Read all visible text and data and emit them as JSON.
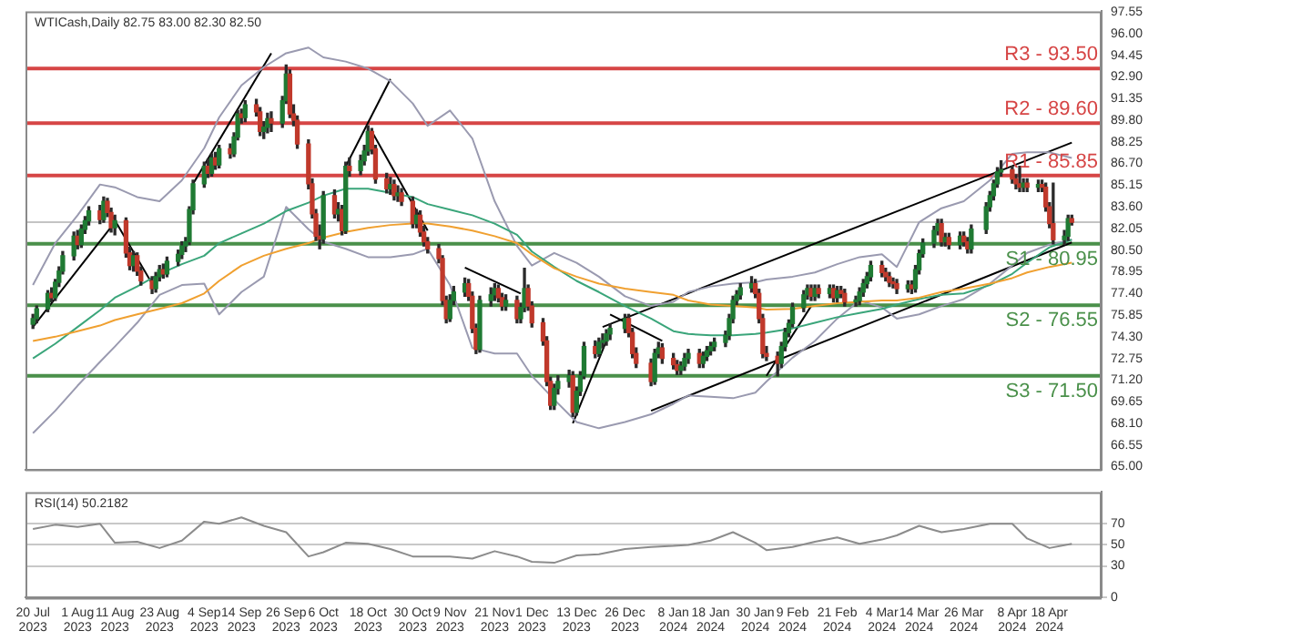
{
  "chart_data": [
    {
      "type": "candlestick",
      "title": "WTICash,Daily 82.75 83.00 82.30 82.50",
      "x": [
        "2023-07-20",
        "2023-07-21",
        "2023-07-24",
        "2023-07-25",
        "2023-07-26",
        "2023-07-27",
        "2023-07-28",
        "2023-07-31",
        "2023-08-01",
        "2023-08-02",
        "2023-08-03",
        "2023-08-04",
        "2023-08-07",
        "2023-08-08",
        "2023-08-09",
        "2023-08-10",
        "2023-08-11",
        "2023-08-14",
        "2023-08-15",
        "2023-08-16",
        "2023-08-17",
        "2023-08-18",
        "2023-08-21",
        "2023-08-22",
        "2023-08-23",
        "2023-08-24",
        "2023-08-25",
        "2023-08-28",
        "2023-08-29",
        "2023-08-30",
        "2023-08-31",
        "2023-09-01",
        "2023-09-04",
        "2023-09-05",
        "2023-09-06",
        "2023-09-07",
        "2023-09-08",
        "2023-09-11",
        "2023-09-12",
        "2023-09-13",
        "2023-09-14",
        "2023-09-15",
        "2023-09-18",
        "2023-09-19",
        "2023-09-20",
        "2023-09-21",
        "2023-09-22",
        "2023-09-25",
        "2023-09-26",
        "2023-09-27",
        "2023-09-28",
        "2023-09-29",
        "2023-10-02",
        "2023-10-03",
        "2023-10-04",
        "2023-10-05",
        "2023-10-06",
        "2023-10-09",
        "2023-10-10",
        "2023-10-11",
        "2023-10-12",
        "2023-10-13",
        "2023-10-16",
        "2023-10-17",
        "2023-10-18",
        "2023-10-19",
        "2023-10-20",
        "2023-10-23",
        "2023-10-24",
        "2023-10-25",
        "2023-10-26",
        "2023-10-27",
        "2023-10-30",
        "2023-10-31",
        "2023-11-01",
        "2023-11-02",
        "2023-11-03",
        "2023-11-06",
        "2023-11-07",
        "2023-11-08",
        "2023-11-09",
        "2023-11-10",
        "2023-11-13",
        "2023-11-14",
        "2023-11-15",
        "2023-11-16",
        "2023-11-17",
        "2023-11-20",
        "2023-11-21",
        "2023-11-22",
        "2023-11-23",
        "2023-11-24",
        "2023-11-27",
        "2023-11-28",
        "2023-11-29",
        "2023-11-30",
        "2023-12-01",
        "2023-12-04",
        "2023-12-05",
        "2023-12-06",
        "2023-12-07",
        "2023-12-08",
        "2023-12-11",
        "2023-12-12",
        "2023-12-13",
        "2023-12-14",
        "2023-12-15",
        "2023-12-18",
        "2023-12-19",
        "2023-12-20",
        "2023-12-21",
        "2023-12-22",
        "2023-12-26",
        "2023-12-27",
        "2023-12-28",
        "2023-12-29",
        "2024-01-02",
        "2024-01-03",
        "2024-01-04",
        "2024-01-05",
        "2024-01-08",
        "2024-01-09",
        "2024-01-10",
        "2024-01-11",
        "2024-01-12",
        "2024-01-15",
        "2024-01-16",
        "2024-01-17",
        "2024-01-18",
        "2024-01-19",
        "2024-01-22",
        "2024-01-23",
        "2024-01-24",
        "2024-01-25",
        "2024-01-26",
        "2024-01-29",
        "2024-01-30",
        "2024-01-31",
        "2024-02-01",
        "2024-02-02",
        "2024-02-05",
        "2024-02-06",
        "2024-02-07",
        "2024-02-08",
        "2024-02-09",
        "2024-02-12",
        "2024-02-13",
        "2024-02-14",
        "2024-02-15",
        "2024-02-16",
        "2024-02-19",
        "2024-02-20",
        "2024-02-21",
        "2024-02-22",
        "2024-02-23",
        "2024-02-26",
        "2024-02-27",
        "2024-02-28",
        "2024-02-29",
        "2024-03-01",
        "2024-03-04",
        "2024-03-05",
        "2024-03-06",
        "2024-03-07",
        "2024-03-08",
        "2024-03-11",
        "2024-03-12",
        "2024-03-13",
        "2024-03-14",
        "2024-03-15",
        "2024-03-18",
        "2024-03-19",
        "2024-03-20",
        "2024-03-21",
        "2024-03-22",
        "2024-03-25",
        "2024-03-26",
        "2024-03-27",
        "2024-03-28",
        "2024-04-01",
        "2024-04-02",
        "2024-04-03",
        "2024-04-04",
        "2024-04-05",
        "2024-04-08",
        "2024-04-09",
        "2024-04-10",
        "2024-04-11",
        "2024-04-12",
        "2024-04-15",
        "2024-04-16",
        "2024-04-17",
        "2024-04-18",
        "2024-04-19",
        "2024-04-22",
        "2024-04-23",
        "2024-04-24"
      ],
      "ohlc": [
        [
          75.2,
          75.9,
          74.9,
          75.6
        ],
        [
          75.6,
          76.5,
          75.3,
          76.3
        ],
        [
          76.3,
          77.6,
          76.1,
          77.4
        ],
        [
          77.4,
          77.8,
          76.8,
          77.1
        ],
        [
          77.1,
          78.4,
          76.9,
          78.2
        ],
        [
          78.2,
          79.3,
          77.9,
          79.0
        ],
        [
          79.0,
          80.4,
          78.8,
          80.1
        ],
        [
          80.1,
          81.8,
          79.8,
          81.5
        ],
        [
          81.5,
          81.9,
          80.6,
          80.9
        ],
        [
          80.9,
          82.3,
          80.7,
          82.0
        ],
        [
          82.0,
          82.9,
          81.7,
          82.6
        ],
        [
          82.6,
          83.6,
          82.3,
          83.3
        ],
        [
          83.3,
          83.7,
          82.4,
          82.7
        ],
        [
          82.7,
          84.3,
          82.5,
          84.0
        ],
        [
          84.0,
          84.2,
          82.9,
          83.2
        ],
        [
          83.2,
          83.5,
          81.8,
          82.1
        ],
        [
          82.1,
          83.0,
          81.6,
          82.6
        ],
        [
          82.6,
          82.8,
          80.0,
          80.3
        ],
        [
          80.3,
          80.7,
          79.1,
          79.4
        ],
        [
          79.4,
          80.4,
          79.0,
          80.1
        ],
        [
          80.1,
          80.3,
          78.7,
          79.0
        ],
        [
          79.0,
          79.3,
          78.0,
          78.3
        ],
        [
          78.3,
          78.6,
          77.4,
          77.75
        ],
        [
          77.75,
          78.9,
          77.5,
          78.6
        ],
        [
          78.6,
          79.4,
          78.3,
          79.1
        ],
        [
          79.1,
          79.5,
          78.5,
          78.8
        ],
        [
          78.8,
          80.0,
          78.6,
          79.7
        ],
        [
          79.7,
          80.5,
          79.4,
          80.2
        ],
        [
          80.2,
          81.1,
          79.9,
          80.8
        ],
        [
          80.8,
          81.4,
          80.4,
          81.1
        ],
        [
          81.1,
          83.6,
          80.9,
          83.4
        ],
        [
          83.4,
          85.5,
          83.1,
          85.25
        ],
        [
          85.25,
          86.8,
          85.0,
          86.5
        ],
        [
          86.5,
          87.0,
          85.7,
          86.0
        ],
        [
          86.0,
          87.4,
          85.8,
          87.1
        ],
        [
          87.1,
          87.5,
          86.3,
          86.6
        ],
        [
          86.6,
          88.0,
          86.4,
          87.75
        ],
        [
          87.75,
          88.1,
          87.1,
          87.4
        ],
        [
          87.4,
          88.9,
          87.2,
          88.6
        ],
        [
          88.6,
          90.5,
          88.4,
          90.25
        ],
        [
          90.25,
          90.6,
          89.6,
          90.0
        ],
        [
          90.0,
          91.2,
          89.7,
          90.9
        ],
        [
          90.9,
          91.3,
          90.1,
          90.4
        ],
        [
          90.4,
          90.7,
          88.7,
          89.0
        ],
        [
          89.0,
          89.7,
          88.5,
          89.3
        ],
        [
          89.3,
          90.3,
          88.9,
          89.9
        ],
        [
          89.9,
          90.4,
          89.0,
          89.6
        ],
        [
          89.6,
          91.5,
          89.3,
          91.2
        ],
        [
          91.2,
          93.75,
          91.0,
          93.1
        ],
        [
          93.1,
          93.4,
          90.0,
          90.25
        ],
        [
          90.25,
          90.9,
          89.4,
          89.8
        ],
        [
          89.8,
          90.1,
          87.8,
          88.1
        ],
        [
          88.1,
          88.4,
          84.9,
          85.25
        ],
        [
          85.25,
          85.6,
          82.8,
          83.1
        ],
        [
          83.1,
          83.4,
          81.2,
          81.5
        ],
        [
          81.5,
          82.3,
          80.6,
          81.3
        ],
        [
          81.3,
          84.7,
          81.0,
          84.4
        ],
        [
          84.4,
          84.8,
          82.8,
          83.1
        ],
        [
          83.1,
          83.9,
          82.6,
          83.4
        ],
        [
          83.4,
          83.7,
          81.6,
          81.9
        ],
        [
          81.9,
          86.8,
          81.7,
          86.5
        ],
        [
          86.5,
          87.1,
          85.8,
          86.2
        ],
        [
          86.2,
          87.3,
          85.9,
          86.9
        ],
        [
          86.9,
          88.0,
          86.6,
          87.6
        ],
        [
          87.6,
          89.4,
          87.3,
          89.0
        ],
        [
          89.0,
          89.2,
          87.4,
          87.75
        ],
        [
          87.75,
          88.0,
          85.3,
          85.6
        ],
        [
          85.6,
          86.0,
          84.6,
          84.9
        ],
        [
          84.9,
          85.7,
          84.5,
          85.2
        ],
        [
          85.2,
          85.5,
          84.1,
          84.4
        ],
        [
          84.4,
          85.1,
          84.0,
          84.6
        ],
        [
          84.6,
          84.9,
          83.7,
          84.0
        ],
        [
          84.0,
          84.3,
          82.1,
          82.4
        ],
        [
          82.4,
          83.4,
          82.1,
          83.0
        ],
        [
          83.0,
          83.3,
          81.5,
          81.8
        ],
        [
          81.8,
          82.2,
          80.8,
          81.1
        ],
        [
          81.1,
          81.4,
          80.3,
          80.6
        ],
        [
          80.6,
          80.9,
          79.6,
          79.9
        ],
        [
          79.9,
          80.1,
          76.6,
          76.9
        ],
        [
          76.9,
          77.2,
          75.3,
          75.6
        ],
        [
          75.6,
          77.3,
          75.4,
          76.9
        ],
        [
          76.9,
          77.9,
          76.6,
          77.5
        ],
        [
          77.5,
          78.5,
          77.2,
          78.1
        ],
        [
          78.1,
          78.4,
          76.9,
          77.2
        ],
        [
          77.2,
          77.5,
          74.6,
          74.9
        ],
        [
          74.9,
          75.2,
          73.1,
          73.4
        ],
        [
          73.4,
          77.2,
          73.2,
          76.9
        ],
        [
          76.9,
          77.8,
          76.5,
          77.3
        ],
        [
          77.3,
          78.1,
          76.9,
          77.75
        ],
        [
          77.75,
          78.0,
          76.8,
          77.1
        ],
        [
          77.1,
          77.4,
          76.2,
          76.5
        ],
        [
          76.5,
          77.3,
          76.2,
          76.9
        ],
        [
          76.9,
          77.2,
          75.3,
          75.6
        ],
        [
          75.6,
          76.7,
          75.3,
          76.4
        ],
        [
          76.4,
          79.2,
          76.1,
          77.75
        ],
        [
          77.75,
          78.0,
          76.2,
          76.5
        ],
        [
          76.5,
          76.8,
          75.0,
          75.3
        ],
        [
          75.3,
          75.6,
          73.7,
          74.0
        ],
        [
          74.0,
          74.3,
          70.8,
          71.1
        ],
        [
          71.1,
          71.4,
          69.1,
          69.4
        ],
        [
          69.4,
          70.9,
          69.1,
          70.6
        ],
        [
          70.6,
          71.5,
          70.2,
          71.1
        ],
        [
          71.1,
          71.9,
          70.7,
          71.5
        ],
        [
          71.5,
          71.8,
          68.6,
          68.9
        ],
        [
          68.9,
          70.7,
          68.7,
          70.4
        ],
        [
          70.4,
          71.8,
          70.1,
          71.5
        ],
        [
          71.5,
          73.9,
          71.3,
          73.6
        ],
        [
          73.6,
          74.0,
          72.8,
          73.1
        ],
        [
          73.1,
          74.2,
          72.9,
          73.9
        ],
        [
          73.9,
          74.5,
          73.5,
          74.0
        ],
        [
          74.0,
          74.8,
          73.7,
          74.5
        ],
        [
          74.5,
          75.2,
          74.1,
          74.9
        ],
        [
          74.9,
          75.9,
          74.6,
          75.6
        ],
        [
          75.6,
          75.9,
          74.3,
          74.6
        ],
        [
          74.6,
          74.9,
          72.8,
          73.1
        ],
        [
          73.1,
          73.5,
          72.1,
          72.4
        ],
        [
          72.4,
          72.7,
          70.8,
          71.1
        ],
        [
          71.1,
          73.4,
          70.9,
          73.1
        ],
        [
          73.1,
          73.9,
          72.8,
          73.5
        ],
        [
          73.5,
          73.8,
          72.4,
          72.75
        ],
        [
          72.75,
          73.1,
          72.0,
          72.3
        ],
        [
          72.3,
          72.6,
          71.6,
          71.9
        ],
        [
          71.9,
          72.5,
          71.6,
          72.2
        ],
        [
          72.2,
          73.1,
          71.9,
          72.75
        ],
        [
          72.75,
          73.4,
          72.4,
          73.1
        ],
        [
          73.1,
          73.4,
          72.1,
          72.4
        ],
        [
          72.4,
          73.2,
          72.1,
          72.9
        ],
        [
          72.9,
          73.6,
          72.6,
          73.3
        ],
        [
          73.3,
          73.9,
          73.0,
          73.6
        ],
        [
          73.6,
          74.2,
          73.3,
          73.9
        ],
        [
          73.9,
          74.7,
          73.6,
          74.4
        ],
        [
          74.4,
          75.9,
          74.1,
          75.6
        ],
        [
          75.6,
          77.2,
          75.3,
          76.9
        ],
        [
          76.9,
          77.6,
          76.6,
          77.3
        ],
        [
          77.3,
          78.1,
          77.0,
          77.8
        ],
        [
          77.8,
          78.6,
          77.5,
          78.1
        ],
        [
          78.1,
          78.4,
          77.1,
          77.4
        ],
        [
          77.4,
          77.7,
          75.3,
          75.6
        ],
        [
          75.6,
          75.9,
          72.8,
          73.1
        ],
        [
          73.1,
          73.6,
          72.6,
          72.9
        ],
        [
          72.9,
          73.2,
          71.5,
          72.4
        ],
        [
          72.4,
          73.9,
          72.1,
          73.6
        ],
        [
          73.6,
          74.9,
          73.3,
          74.6
        ],
        [
          74.6,
          75.5,
          74.3,
          75.25
        ],
        [
          75.25,
          76.7,
          75.0,
          76.4
        ],
        [
          76.4,
          77.6,
          76.1,
          77.3
        ],
        [
          77.3,
          78.0,
          77.0,
          77.75
        ],
        [
          77.75,
          78.0,
          76.9,
          77.2
        ],
        [
          77.2,
          78.0,
          76.9,
          77.75
        ],
        [
          77.75,
          78.0,
          77.1,
          77.4
        ],
        [
          77.4,
          78.0,
          77.1,
          77.75
        ],
        [
          77.75,
          78.0,
          76.8,
          77.1
        ],
        [
          77.1,
          77.9,
          76.8,
          77.6
        ],
        [
          77.6,
          77.9,
          77.1,
          77.4
        ],
        [
          77.4,
          77.7,
          76.5,
          76.8
        ],
        [
          76.8,
          77.2,
          76.5,
          76.9
        ],
        [
          76.9,
          77.8,
          76.6,
          77.5
        ],
        [
          77.5,
          78.4,
          77.2,
          78.1
        ],
        [
          78.1,
          78.9,
          77.8,
          78.6
        ],
        [
          78.6,
          79.7,
          78.3,
          79.4
        ],
        [
          79.4,
          79.7,
          78.6,
          78.9
        ],
        [
          78.9,
          79.2,
          78.3,
          78.6
        ],
        [
          78.6,
          78.9,
          77.9,
          78.2
        ],
        [
          78.2,
          78.5,
          77.8,
          78.1
        ],
        [
          78.1,
          78.4,
          77.4,
          77.75
        ],
        [
          77.75,
          78.3,
          77.5,
          78.0
        ],
        [
          78.0,
          78.3,
          77.4,
          77.75
        ],
        [
          77.75,
          79.4,
          77.5,
          79.1
        ],
        [
          79.1,
          80.5,
          78.8,
          80.25
        ],
        [
          80.25,
          81.3,
          80.0,
          81.0
        ],
        [
          81.0,
          82.2,
          80.7,
          81.9
        ],
        [
          81.9,
          82.7,
          81.6,
          82.4
        ],
        [
          82.4,
          82.7,
          80.8,
          81.1
        ],
        [
          81.1,
          81.7,
          80.8,
          81.4
        ],
        [
          81.4,
          81.7,
          80.6,
          80.9
        ],
        [
          80.9,
          81.8,
          80.6,
          81.5
        ],
        [
          81.5,
          81.8,
          80.8,
          81.1
        ],
        [
          81.1,
          81.4,
          80.3,
          80.6
        ],
        [
          80.6,
          82.3,
          80.3,
          82.0
        ],
        [
          82.0,
          83.9,
          81.7,
          83.6
        ],
        [
          83.6,
          84.7,
          83.3,
          84.4
        ],
        [
          84.4,
          85.5,
          84.1,
          85.25
        ],
        [
          85.25,
          86.4,
          85.0,
          86.1
        ],
        [
          86.1,
          86.9,
          85.8,
          86.25
        ],
        [
          86.25,
          86.5,
          85.3,
          85.6
        ],
        [
          85.6,
          85.9,
          84.9,
          85.25
        ],
        [
          85.25,
          86.5,
          84.7,
          85.0
        ],
        [
          85.0,
          85.6,
          84.7,
          85.3
        ],
        [
          85.3,
          85.6,
          84.7,
          85.0
        ],
        [
          85.0,
          85.5,
          84.7,
          85.2
        ],
        [
          85.2,
          85.5,
          84.7,
          85.0
        ],
        [
          85.0,
          85.3,
          83.3,
          83.6
        ],
        [
          83.6,
          83.9,
          82.1,
          82.4
        ],
        [
          82.4,
          85.3,
          80.95,
          81.25
        ],
        [
          81.25,
          81.9,
          80.9,
          81.5
        ],
        [
          81.5,
          83.0,
          81.2,
          82.75
        ],
        [
          82.75,
          83.0,
          82.3,
          82.5
        ]
      ],
      "series": [
        {
          "type": "line",
          "color": "#f0a030",
          "x": [
            "2023-07-20",
            "2023-07-26",
            "2023-08-01",
            "2023-08-07",
            "2023-08-11",
            "2023-08-17",
            "2023-08-23",
            "2023-08-29",
            "2023-09-04",
            "2023-09-08",
            "2023-09-14",
            "2023-09-20",
            "2023-09-26",
            "2023-10-02",
            "2023-10-06",
            "2023-10-12",
            "2023-10-18",
            "2023-10-24",
            "2023-10-30",
            "2023-11-03",
            "2023-11-09",
            "2023-11-15",
            "2023-11-21",
            "2023-11-27",
            "2023-12-01",
            "2023-12-07",
            "2023-12-13",
            "2023-12-19",
            "2023-12-26",
            "2024-01-02",
            "2024-01-08",
            "2024-01-12",
            "2024-01-18",
            "2024-01-24",
            "2024-01-30",
            "2024-02-02",
            "2024-02-09",
            "2024-02-15",
            "2024-02-21",
            "2024-02-27",
            "2024-03-04",
            "2024-03-08",
            "2024-03-14",
            "2024-03-20",
            "2024-03-26",
            "2024-04-02",
            "2024-04-08",
            "2024-04-12",
            "2024-04-18",
            "2024-04-24"
          ],
          "values": [
            74.0,
            74.3,
            74.7,
            75.1,
            75.5,
            75.9,
            76.3,
            76.7,
            77.4,
            78.3,
            79.4,
            80.1,
            80.6,
            81.0,
            81.4,
            81.8,
            82.1,
            82.3,
            82.4,
            82.4,
            82.2,
            81.9,
            81.5,
            81.0,
            80.2,
            79.2,
            78.6,
            78.1,
            77.75,
            77.5,
            77.3,
            76.9,
            76.6,
            76.5,
            76.4,
            76.25,
            76.3,
            76.5,
            76.7,
            76.8,
            76.9,
            76.9,
            77.1,
            77.5,
            77.75,
            78.1,
            78.5,
            78.9,
            79.3,
            79.6
          ]
        },
        {
          "type": "line",
          "color": "#3aa57a",
          "x": [
            "2023-07-20",
            "2023-07-26",
            "2023-08-01",
            "2023-08-07",
            "2023-08-11",
            "2023-08-17",
            "2023-08-23",
            "2023-08-29",
            "2023-09-04",
            "2023-09-08",
            "2023-09-14",
            "2023-09-20",
            "2023-09-26",
            "2023-10-02",
            "2023-10-06",
            "2023-10-12",
            "2023-10-18",
            "2023-10-24",
            "2023-10-30",
            "2023-11-03",
            "2023-11-09",
            "2023-11-15",
            "2023-11-21",
            "2023-11-27",
            "2023-12-01",
            "2023-12-07",
            "2023-12-13",
            "2023-12-19",
            "2023-12-26",
            "2024-01-02",
            "2024-01-08",
            "2024-01-12",
            "2024-01-18",
            "2024-01-24",
            "2024-01-30",
            "2024-02-02",
            "2024-02-09",
            "2024-02-15",
            "2024-02-21",
            "2024-02-27",
            "2024-03-04",
            "2024-03-08",
            "2024-03-14",
            "2024-03-20",
            "2024-03-26",
            "2024-04-02",
            "2024-04-08",
            "2024-04-12",
            "2024-04-18",
            "2024-04-24"
          ],
          "values": [
            72.75,
            73.8,
            75.0,
            76.2,
            77.1,
            77.9,
            78.8,
            79.5,
            80.1,
            81.0,
            81.7,
            82.4,
            83.3,
            83.9,
            84.4,
            84.9,
            84.9,
            84.6,
            84.3,
            83.8,
            83.4,
            83.0,
            82.4,
            81.6,
            80.4,
            79.3,
            78.3,
            77.5,
            76.5,
            75.6,
            74.7,
            74.5,
            74.4,
            74.4,
            74.5,
            74.6,
            74.9,
            75.3,
            75.7,
            76.0,
            76.3,
            76.6,
            77.0,
            77.3,
            77.4,
            78.0,
            78.8,
            79.6,
            80.7,
            81.25
          ]
        },
        {
          "type": "line",
          "color": "#9a9ab0",
          "x": [
            "2023-07-20",
            "2023-07-26",
            "2023-08-01",
            "2023-08-07",
            "2023-08-11",
            "2023-08-17",
            "2023-08-23",
            "2023-08-29",
            "2023-09-04",
            "2023-09-08",
            "2023-09-14",
            "2023-09-20",
            "2023-09-26",
            "2023-10-02",
            "2023-10-06",
            "2023-10-12",
            "2023-10-18",
            "2023-10-24",
            "2023-10-30",
            "2023-11-03",
            "2023-11-09",
            "2023-11-15",
            "2023-11-21",
            "2023-11-27",
            "2023-12-01",
            "2023-12-07",
            "2023-12-13",
            "2023-12-19",
            "2023-12-26",
            "2024-01-02",
            "2024-01-08",
            "2024-01-12",
            "2024-01-18",
            "2024-01-24",
            "2024-01-30",
            "2024-02-02",
            "2024-02-09",
            "2024-02-15",
            "2024-02-21",
            "2024-02-27",
            "2024-03-04",
            "2024-03-08",
            "2024-03-14",
            "2024-03-20",
            "2024-03-26",
            "2024-04-02",
            "2024-04-08",
            "2024-04-12",
            "2024-04-18",
            "2024-04-24"
          ],
          "values": [
            78.0,
            81.0,
            83.0,
            85.2,
            85.0,
            84.3,
            84.0,
            85.5,
            87.8,
            90.0,
            92.3,
            93.6,
            94.6,
            95.0,
            94.3,
            94.0,
            93.5,
            92.6,
            91.0,
            89.4,
            90.5,
            88.5,
            84.0,
            80.8,
            79.4,
            80.3,
            79.6,
            78.6,
            77.2,
            76.5,
            76.8,
            77.5,
            77.9,
            78.1,
            78.2,
            78.4,
            78.6,
            78.9,
            79.5,
            80.0,
            80.2,
            79.3,
            82.5,
            83.5,
            84.0,
            85.5,
            87.4,
            87.5,
            87.5,
            87.1
          ]
        },
        {
          "type": "line",
          "color": "#9a9ab0",
          "x": [
            "2023-07-20",
            "2023-07-26",
            "2023-08-01",
            "2023-08-07",
            "2023-08-11",
            "2023-08-17",
            "2023-08-23",
            "2023-08-29",
            "2023-09-04",
            "2023-09-08",
            "2023-09-14",
            "2023-09-20",
            "2023-09-26",
            "2023-10-02",
            "2023-10-06",
            "2023-10-12",
            "2023-10-18",
            "2023-10-24",
            "2023-10-30",
            "2023-11-03",
            "2023-11-09",
            "2023-11-15",
            "2023-11-21",
            "2023-11-27",
            "2023-12-01",
            "2023-12-07",
            "2023-12-13",
            "2023-12-19",
            "2023-12-26",
            "2024-01-02",
            "2024-01-08",
            "2024-01-12",
            "2024-01-18",
            "2024-01-24",
            "2024-01-30",
            "2024-02-02",
            "2024-02-09",
            "2024-02-15",
            "2024-02-21",
            "2024-02-27",
            "2024-03-04",
            "2024-03-08",
            "2024-03-14",
            "2024-03-20",
            "2024-03-26",
            "2024-04-02",
            "2024-04-08",
            "2024-04-12",
            "2024-04-18",
            "2024-04-24"
          ],
          "values": [
            67.4,
            69.0,
            70.8,
            72.5,
            73.6,
            75.3,
            77.3,
            78.0,
            78.1,
            75.9,
            77.5,
            78.6,
            83.6,
            82.0,
            81.1,
            80.6,
            80.0,
            80.0,
            80.2,
            80.6,
            78.0,
            73.5,
            73.1,
            73.1,
            71.5,
            69.8,
            68.2,
            67.75,
            68.2,
            68.75,
            69.5,
            70.1,
            70.0,
            69.9,
            70.3,
            71.1,
            72.8,
            74.0,
            75.6,
            76.9,
            76.4,
            75.6,
            75.9,
            76.5,
            77.0,
            78.1,
            79.4,
            80.3,
            80.9,
            81.25
          ]
        },
        {
          "type": "line",
          "color": "#000000",
          "x": [
            "2023-07-20",
            "2023-08-11"
          ],
          "values": [
            75.0,
            82.5
          ]
        },
        {
          "type": "line",
          "color": "#000000",
          "x": [
            "2023-08-08",
            "2023-08-21"
          ],
          "values": [
            84.0,
            78.1
          ]
        },
        {
          "type": "line",
          "color": "#000000",
          "x": [
            "2023-09-01",
            "2023-09-22"
          ],
          "values": [
            85.25,
            94.6
          ]
        },
        {
          "type": "line",
          "color": "#000000",
          "x": [
            "2023-10-12",
            "2023-10-24"
          ],
          "values": [
            86.5,
            92.75
          ]
        },
        {
          "type": "line",
          "color": "#000000",
          "x": [
            "2023-10-19",
            "2023-11-03"
          ],
          "values": [
            89.0,
            81.9
          ]
        },
        {
          "type": "line",
          "color": "#000000",
          "x": [
            "2023-11-13",
            "2023-11-28"
          ],
          "values": [
            79.25,
            77.4
          ]
        },
        {
          "type": "line",
          "color": "#000000",
          "x": [
            "2023-12-12",
            "2023-12-21"
          ],
          "values": [
            68.1,
            74.0
          ]
        },
        {
          "type": "line",
          "color": "#000000",
          "x": [
            "2023-12-22",
            "2024-01-05"
          ],
          "values": [
            75.9,
            74.0
          ]
        },
        {
          "type": "line",
          "color": "#000000",
          "x": [
            "2024-02-02",
            "2024-02-14"
          ],
          "values": [
            71.5,
            76.5
          ]
        },
        {
          "type": "line",
          "color": "#000000",
          "x": [
            "2023-12-20",
            "2024-04-24"
          ],
          "values": [
            75.0,
            88.2
          ]
        },
        {
          "type": "line",
          "color": "#000000",
          "x": [
            "2024-01-02",
            "2024-04-24"
          ],
          "values": [
            69.0,
            81.05
          ]
        }
      ],
      "ref_lines": [
        {
          "axis": "y",
          "value": 93.5,
          "label": "R3 - 93.50",
          "color": "#d64545"
        },
        {
          "axis": "y",
          "value": 89.6,
          "label": "R2 - 89.60",
          "color": "#d64545"
        },
        {
          "axis": "y",
          "value": 85.85,
          "label": "R1 - 85.85",
          "color": "#d64545"
        },
        {
          "axis": "y",
          "value": 82.5,
          "color": "#c4c4c4"
        },
        {
          "axis": "y",
          "value": 80.95,
          "label": "S1 - 80.95",
          "color": "#4a904a"
        },
        {
          "axis": "y",
          "value": 76.55,
          "label": "S2 - 76.55",
          "color": "#4a904a"
        },
        {
          "axis": "y",
          "value": 71.5,
          "label": "S3 - 71.50",
          "color": "#4a904a"
        }
      ],
      "ylim": [
        64.8,
        97.6
      ],
      "yticks": [
        {
          "value": 65,
          "label": "65.00"
        },
        {
          "value": 66.55,
          "label": "66.55"
        },
        {
          "value": 68.1,
          "label": "68.10"
        },
        {
          "value": 69.65,
          "label": "69.65"
        },
        {
          "value": 71.2,
          "label": "71.20"
        },
        {
          "value": 72.75,
          "label": "72.75"
        },
        {
          "value": 74.3,
          "label": "74.30"
        },
        {
          "value": 75.85,
          "label": "75.85"
        },
        {
          "value": 77.4,
          "label": "77.40"
        },
        {
          "value": 78.95,
          "label": "78.95"
        },
        {
          "value": 80.5,
          "label": "80.50"
        },
        {
          "value": 82.05,
          "label": "82.05"
        },
        {
          "value": 83.6,
          "label": "83.60"
        },
        {
          "value": 85.15,
          "label": "85.15"
        },
        {
          "value": 86.7,
          "label": "86.70"
        },
        {
          "value": 88.25,
          "label": "88.25"
        },
        {
          "value": 89.8,
          "label": "89.80"
        },
        {
          "value": 91.35,
          "label": "91.35"
        },
        {
          "value": 92.9,
          "label": "92.90"
        },
        {
          "value": 94.45,
          "label": "94.45"
        },
        {
          "value": 96,
          "label": "96.00"
        },
        {
          "value": 97.55,
          "label": "97.55"
        }
      ],
      "tick_labels": "y",
      "xlim": [
        "2023-07-18",
        "2024-05-02"
      ]
    },
    {
      "type": "line",
      "title": "RSI(14) 50.2182",
      "color": "#8c8c8c",
      "x": [
        "2023-07-20",
        "2023-07-26",
        "2023-08-01",
        "2023-08-07",
        "2023-08-11",
        "2023-08-17",
        "2023-08-23",
        "2023-08-29",
        "2023-09-04",
        "2023-09-08",
        "2023-09-14",
        "2023-09-20",
        "2023-09-26",
        "2023-10-02",
        "2023-10-06",
        "2023-10-12",
        "2023-10-18",
        "2023-10-24",
        "2023-10-30",
        "2023-11-03",
        "2023-11-09",
        "2023-11-15",
        "2023-11-21",
        "2023-11-27",
        "2023-12-01",
        "2023-12-07",
        "2023-12-13",
        "2023-12-19",
        "2023-12-26",
        "2024-01-02",
        "2024-01-08",
        "2024-01-12",
        "2024-01-18",
        "2024-01-24",
        "2024-01-30",
        "2024-02-02",
        "2024-02-09",
        "2024-02-15",
        "2024-02-21",
        "2024-02-27",
        "2024-03-04",
        "2024-03-08",
        "2024-03-14",
        "2024-03-20",
        "2024-03-26",
        "2024-04-02",
        "2024-04-08",
        "2024-04-12",
        "2024-04-18",
        "2024-04-24"
      ],
      "values": [
        65,
        69,
        67,
        70,
        52,
        53,
        47,
        54,
        72,
        70,
        76,
        68,
        62,
        39,
        43,
        52,
        51,
        46,
        39,
        39,
        39,
        37,
        44,
        39,
        34,
        33,
        40,
        41,
        46,
        48,
        49,
        50,
        54,
        62,
        52,
        45,
        48,
        53,
        57,
        51,
        55,
        59,
        68,
        62,
        65,
        70,
        70,
        56,
        47,
        51
      ],
      "ylim": [
        0,
        100
      ],
      "yticks": [
        0,
        30,
        50,
        70
      ],
      "grid": "y",
      "xlim": [
        "2023-07-18",
        "2024-05-02"
      ],
      "xticks": [
        {
          "value": "2023-07-20",
          "label": "20 Jul 2023"
        },
        {
          "value": "2023-08-01",
          "label": "1 Aug 2023"
        },
        {
          "value": "2023-08-11",
          "label": "11 Aug 2023"
        },
        {
          "value": "2023-08-23",
          "label": "23 Aug 2023"
        },
        {
          "value": "2023-09-04",
          "label": "4 Sep 2023"
        },
        {
          "value": "2023-09-14",
          "label": "14 Sep 2023"
        },
        {
          "value": "2023-09-26",
          "label": "26 Sep 2023"
        },
        {
          "value": "2023-10-06",
          "label": "6 Oct 2023"
        },
        {
          "value": "2023-10-18",
          "label": "18 Oct 2023"
        },
        {
          "value": "2023-10-30",
          "label": "30 Oct 2023"
        },
        {
          "value": "2023-11-09",
          "label": "9 Nov 2023"
        },
        {
          "value": "2023-11-21",
          "label": "21 Nov 2023"
        },
        {
          "value": "2023-12-01",
          "label": "1 Dec 2023"
        },
        {
          "value": "2023-12-13",
          "label": "13 Dec 2023"
        },
        {
          "value": "2023-12-26",
          "label": "26 Dec 2023"
        },
        {
          "value": "2024-01-08",
          "label": "8 Jan 2024"
        },
        {
          "value": "2024-01-18",
          "label": "18 Jan 2024"
        },
        {
          "value": "2024-01-30",
          "label": "30 Jan 2024"
        },
        {
          "value": "2024-02-09",
          "label": "9 Feb 2024"
        },
        {
          "value": "2024-02-21",
          "label": "21 Feb 2024"
        },
        {
          "value": "2024-03-04",
          "label": "4 Mar 2024"
        },
        {
          "value": "2024-03-14",
          "label": "14 Mar 2024"
        },
        {
          "value": "2024-03-26",
          "label": "26 Mar 2024"
        },
        {
          "value": "2024-04-08",
          "label": "8 Apr 2024"
        },
        {
          "value": "2024-04-18",
          "label": "18 Apr 2024"
        }
      ]
    }
  ]
}
